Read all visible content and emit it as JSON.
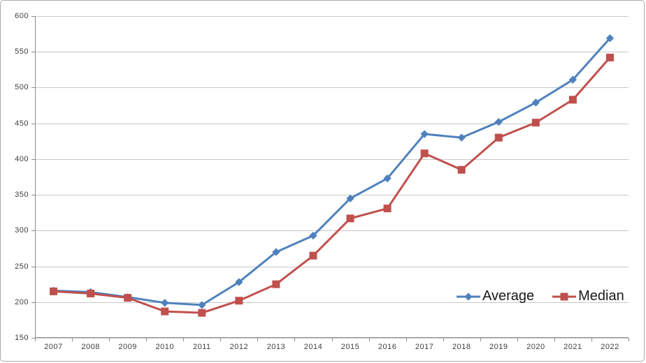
{
  "frame": {
    "background": "#ffffff",
    "border_color": "#ababab"
  },
  "chart_data": {
    "type": "line",
    "title": "",
    "xlabel": "",
    "ylabel": "",
    "categories": [
      "2007",
      "2008",
      "2009",
      "2010",
      "2011",
      "2012",
      "2013",
      "2014",
      "2015",
      "2016",
      "2017",
      "2018",
      "2019",
      "2020",
      "2021",
      "2022"
    ],
    "series": [
      {
        "name": "Average",
        "marker": "diamond",
        "color": "#4F81BD",
        "values": [
          216,
          214,
          207,
          199,
          196,
          228,
          270,
          293,
          345,
          373,
          435,
          430,
          452,
          479,
          511,
          569
        ]
      },
      {
        "name": "Median",
        "marker": "square",
        "color": "#C0504D",
        "values": [
          215,
          212,
          206,
          187,
          185,
          202,
          225,
          265,
          317,
          331,
          408,
          385,
          430,
          451,
          483,
          542
        ]
      }
    ],
    "ylim": [
      150,
      600
    ],
    "yticks": [
      600,
      550,
      500,
      450,
      400,
      350,
      300,
      250,
      200,
      150
    ],
    "grid": true,
    "grid_color": "#c8c8c8",
    "axis_color": "#8e8e8e",
    "tick_text_color": "#3e3e3e",
    "legend_position": "inside-right"
  }
}
